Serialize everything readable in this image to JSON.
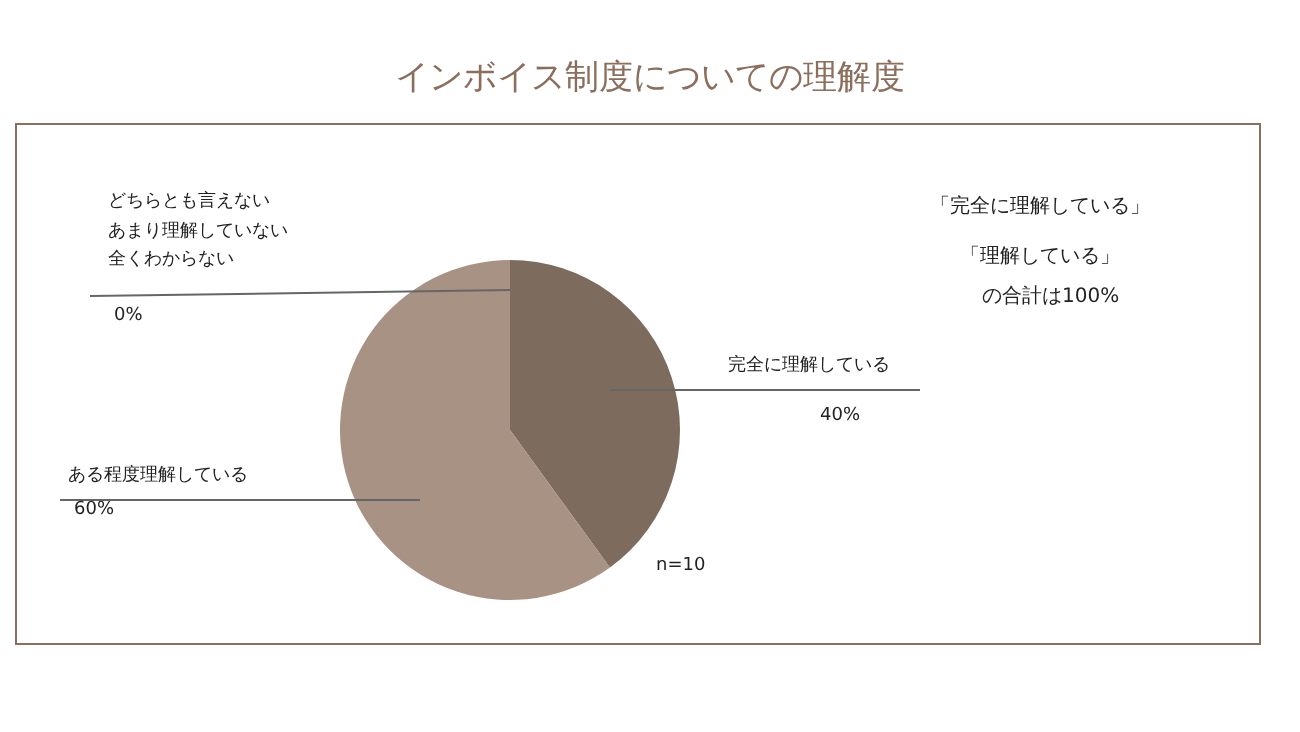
{
  "chart_data": {
    "type": "pie",
    "title": "インボイス制度についての理解度",
    "categories": [
      "完全に理解している",
      "ある程度理解している",
      "どちらとも言えない",
      "あまり理解していない",
      "全くわからない"
    ],
    "values": [
      40,
      60,
      0,
      0,
      0
    ],
    "colors": [
      "#7d6b5d",
      "#a89284",
      "#c9b8ab",
      "#c9b8ab",
      "#c9b8ab"
    ],
    "value_labels": [
      "40%",
      "60%",
      null,
      null,
      "0%"
    ],
    "legend": false,
    "annotations": [
      "n=10",
      "「完全に理解している」",
      "「理解している」",
      "の合計は100%"
    ]
  }
}
